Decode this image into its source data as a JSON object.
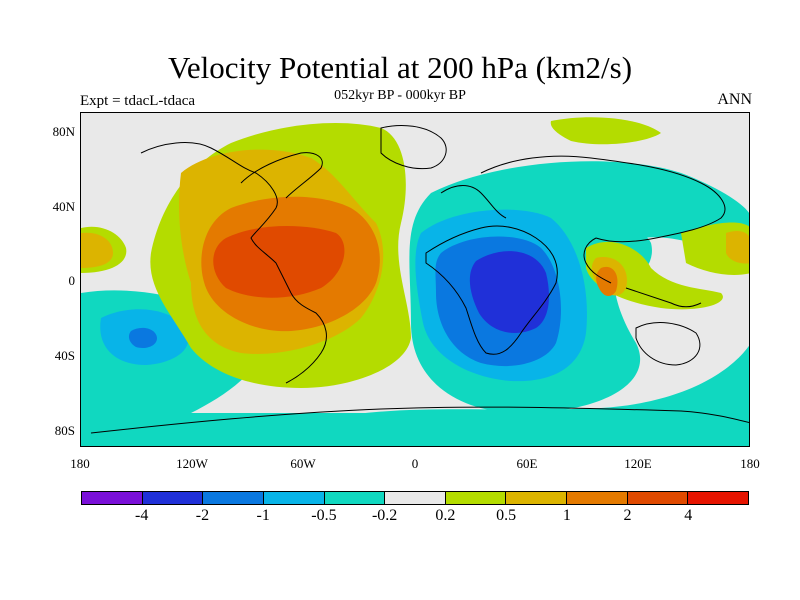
{
  "title": "Velocity Potential at 200 hPa (km2/s)",
  "subtitle": "052kyr BP - 000kyr BP",
  "left_label": "Expt = tdacL-tdaca",
  "right_label": "ANN",
  "lat_ticks": [
    "80N",
    "40N",
    "0",
    "40S",
    "80S"
  ],
  "lon_ticks": [
    "180",
    "120W",
    "60W",
    "0",
    "60E",
    "120E",
    "180"
  ],
  "colorbar": {
    "colors": [
      "#7a10d8",
      "#2030d8",
      "#0a78e0",
      "#08b4e8",
      "#10d8c0",
      "#e9e9e9",
      "#b4dc00",
      "#dcb400",
      "#e47a00",
      "#e04a00",
      "#e61400"
    ],
    "labels": [
      "-4",
      "-2",
      "-1",
      "-0.5",
      "-0.2",
      "0.2",
      "0.5",
      "1",
      "2",
      "4"
    ]
  }
}
